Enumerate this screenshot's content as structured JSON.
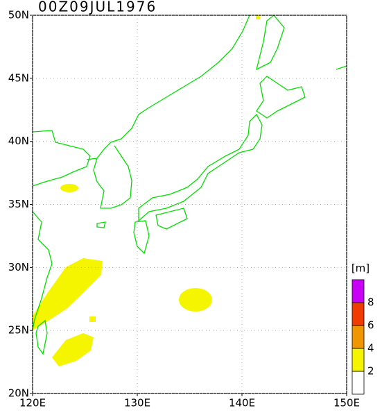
{
  "title": "00Z09JUL1976",
  "lon_range": [
    120,
    150
  ],
  "lat_range": [
    20,
    50
  ],
  "lon_ticks": [
    {
      "value": 120,
      "label": "120E"
    },
    {
      "value": 130,
      "label": "130E"
    },
    {
      "value": 140,
      "label": "140E"
    },
    {
      "value": 150,
      "label": "150E"
    }
  ],
  "lat_ticks": [
    {
      "value": 20,
      "label": "20N"
    },
    {
      "value": 25,
      "label": "25N"
    },
    {
      "value": 30,
      "label": "30N"
    },
    {
      "value": 35,
      "label": "35N"
    },
    {
      "value": 40,
      "label": "40N"
    },
    {
      "value": 45,
      "label": "45N"
    },
    {
      "value": 50,
      "label": "50N"
    }
  ],
  "colorbar": {
    "unit": "[m]",
    "levels": [
      2,
      4,
      6,
      8
    ],
    "colors": [
      "#ffffff",
      "#f5f500",
      "#f09600",
      "#f03c00",
      "#c800f5"
    ]
  }
}
